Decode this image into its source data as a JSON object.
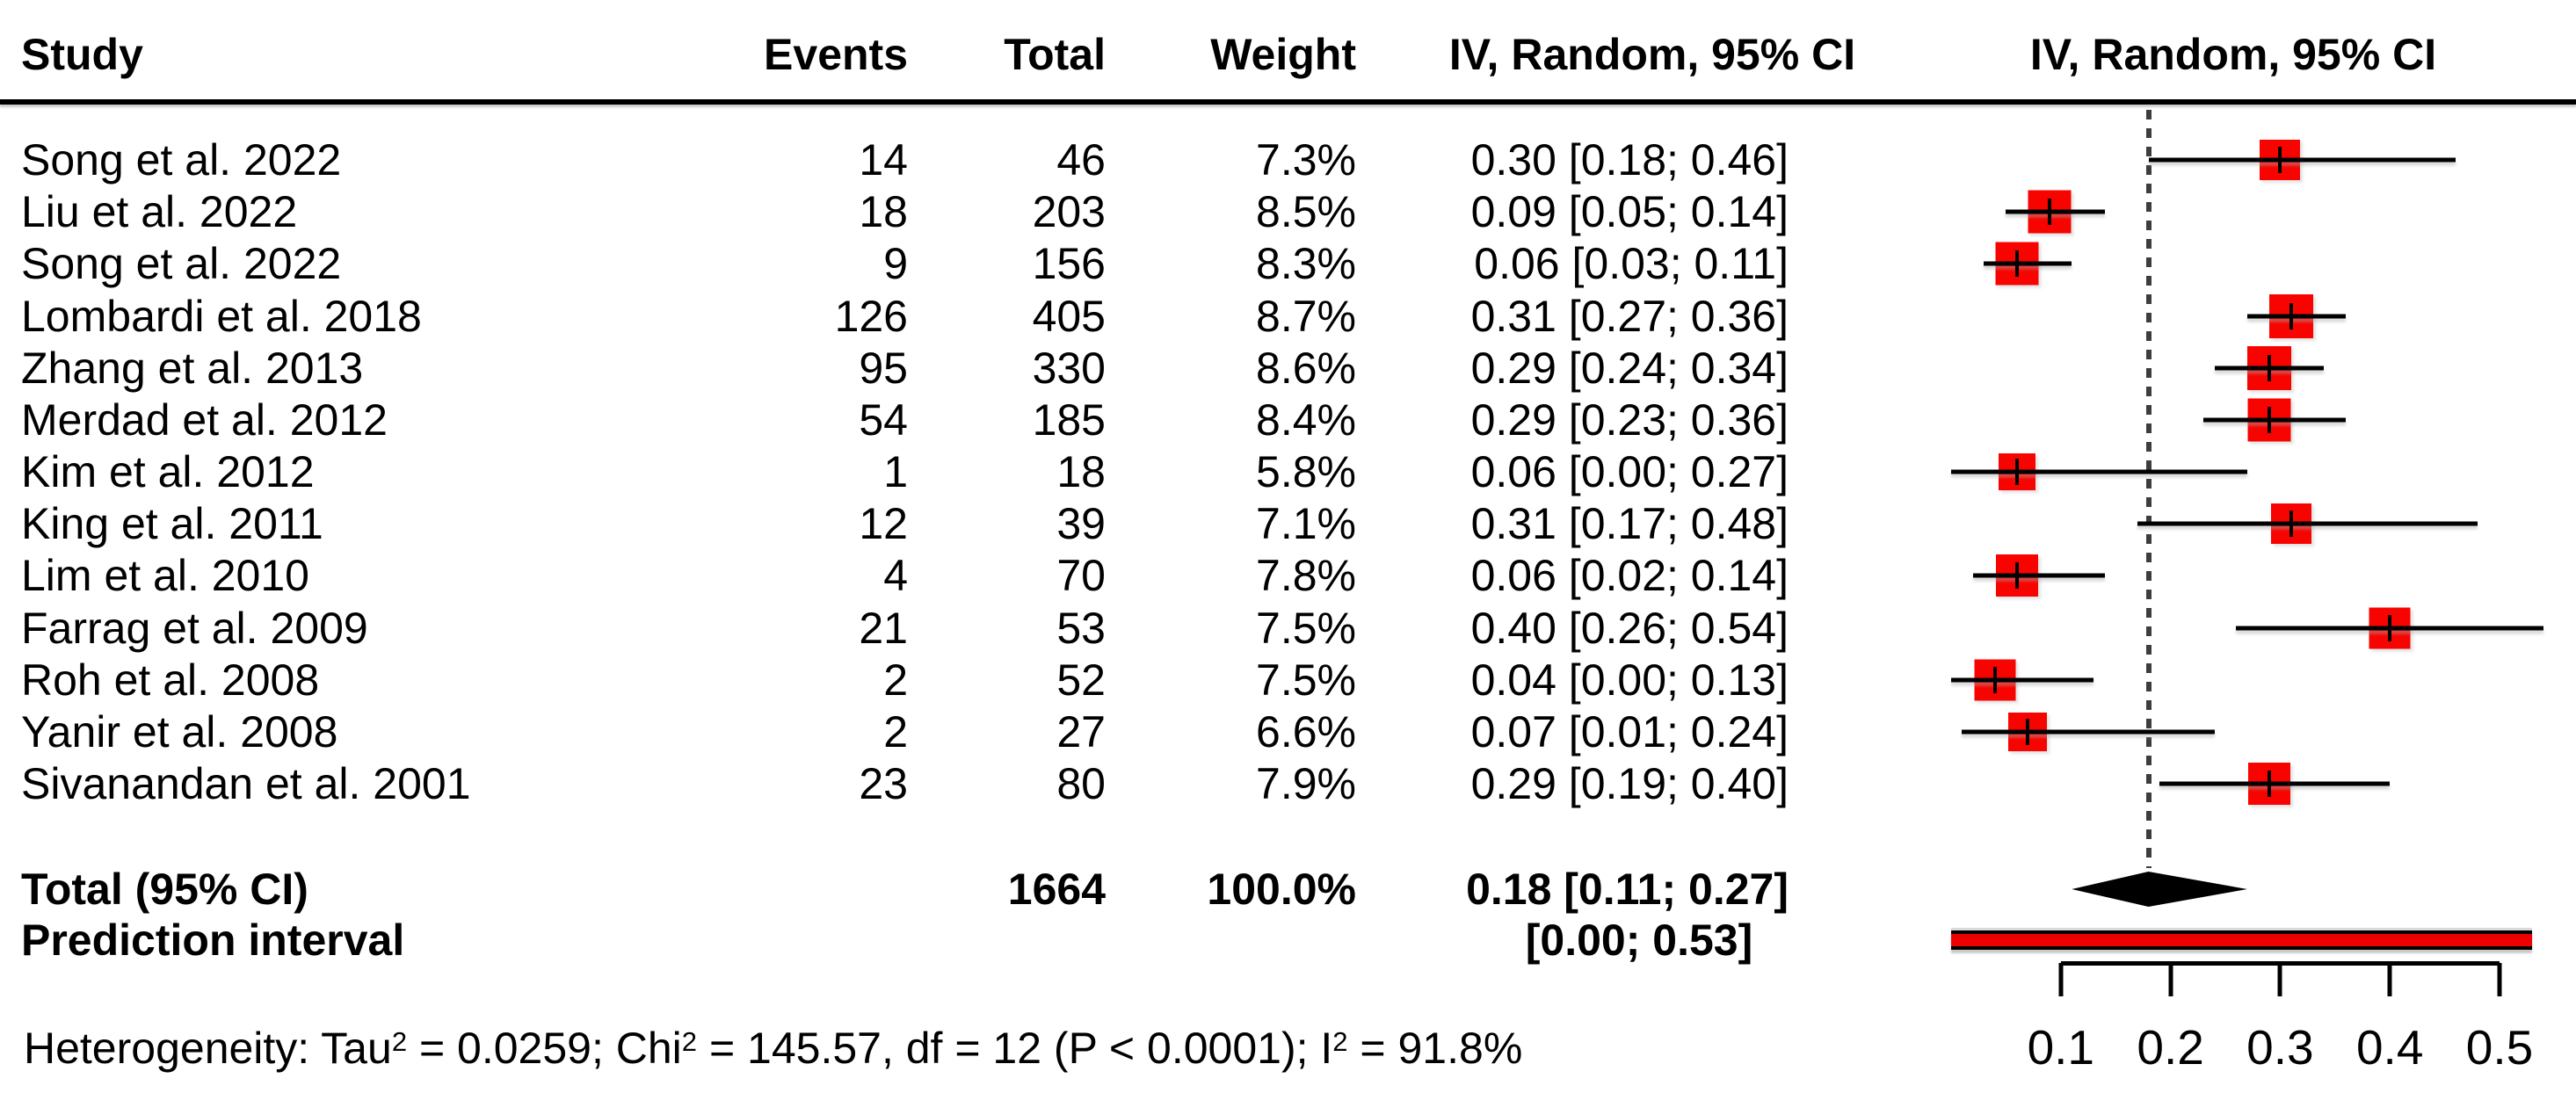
{
  "colors": {
    "square_red": "#f80400",
    "prediction_red": "#ee0000",
    "line_black": "#000000",
    "dotted_gray": "#3d3d3d",
    "background": "#ffffff"
  },
  "header": {
    "study": "Study",
    "events": "Events",
    "total": "Total",
    "weight": "Weight",
    "ci_text_col": "IV, Random, 95% CI",
    "ci_plot_col": "IV, Random, 95% CI"
  },
  "chart_data": {
    "type": "forest",
    "model_label": "IV, Random, 95% CI",
    "xlim": [
      0,
      0.565
    ],
    "x_ticks": [
      0.1,
      0.2,
      0.3,
      0.4,
      0.5
    ],
    "x_tick_labels": [
      "0.1",
      "0.2",
      "0.3",
      "0.4",
      "0.5"
    ],
    "reference_line": 0.18,
    "studies": [
      {
        "name": "Song et al. 2022",
        "events": "14",
        "total": "46",
        "weight": "7.3%",
        "weight_val": 7.3,
        "estimate": 0.3,
        "ci_low": 0.18,
        "ci_high": 0.46,
        "ci_text": "0.30 [0.18; 0.46]"
      },
      {
        "name": "Liu et al. 2022",
        "events": "18",
        "total": "203",
        "weight": "8.5%",
        "weight_val": 8.5,
        "estimate": 0.09,
        "ci_low": 0.05,
        "ci_high": 0.14,
        "ci_text": "0.09 [0.05; 0.14]"
      },
      {
        "name": "Song et al. 2022",
        "events": "9",
        "total": "156",
        "weight": "8.3%",
        "weight_val": 8.3,
        "estimate": 0.06,
        "ci_low": 0.03,
        "ci_high": 0.11,
        "ci_text": "0.06 [0.03; 0.11]"
      },
      {
        "name": "Lombardi et al. 2018",
        "events": "126",
        "total": "405",
        "weight": "8.7%",
        "weight_val": 8.7,
        "estimate": 0.31,
        "ci_low": 0.27,
        "ci_high": 0.36,
        "ci_text": "0.31 [0.27; 0.36]"
      },
      {
        "name": "Zhang et al. 2013",
        "events": "95",
        "total": "330",
        "weight": "8.6%",
        "weight_val": 8.6,
        "estimate": 0.29,
        "ci_low": 0.24,
        "ci_high": 0.34,
        "ci_text": "0.29 [0.24; 0.34]"
      },
      {
        "name": "Merdad et al. 2012",
        "events": "54",
        "total": "185",
        "weight": "8.4%",
        "weight_val": 8.4,
        "estimate": 0.29,
        "ci_low": 0.23,
        "ci_high": 0.36,
        "ci_text": "0.29 [0.23; 0.36]"
      },
      {
        "name": "Kim et al. 2012",
        "events": "1",
        "total": "18",
        "weight": "5.8%",
        "weight_val": 5.8,
        "estimate": 0.06,
        "ci_low": 0.0,
        "ci_high": 0.27,
        "ci_text": "0.06 [0.00; 0.27]"
      },
      {
        "name": "King et al. 2011",
        "events": "12",
        "total": "39",
        "weight": "7.1%",
        "weight_val": 7.1,
        "estimate": 0.31,
        "ci_low": 0.17,
        "ci_high": 0.48,
        "ci_text": "0.31 [0.17; 0.48]"
      },
      {
        "name": "Lim et al. 2010",
        "events": "4",
        "total": "70",
        "weight": "7.8%",
        "weight_val": 7.8,
        "estimate": 0.06,
        "ci_low": 0.02,
        "ci_high": 0.14,
        "ci_text": "0.06 [0.02; 0.14]"
      },
      {
        "name": "Farrag et al. 2009",
        "events": "21",
        "total": "53",
        "weight": "7.5%",
        "weight_val": 7.5,
        "estimate": 0.4,
        "ci_low": 0.26,
        "ci_high": 0.54,
        "ci_text": "0.40 [0.26; 0.54]"
      },
      {
        "name": "Roh et al. 2008",
        "events": "2",
        "total": "52",
        "weight": "7.5%",
        "weight_val": 7.5,
        "estimate": 0.04,
        "ci_low": 0.0,
        "ci_high": 0.13,
        "ci_text": "0.04 [0.00; 0.13]"
      },
      {
        "name": "Yanir et al. 2008",
        "events": "2",
        "total": "27",
        "weight": "6.6%",
        "weight_val": 6.6,
        "estimate": 0.07,
        "ci_low": 0.01,
        "ci_high": 0.24,
        "ci_text": "0.07 [0.01; 0.24]"
      },
      {
        "name": "Sivanandan et al. 2001",
        "events": "23",
        "total": "80",
        "weight": "7.9%",
        "weight_val": 7.9,
        "estimate": 0.29,
        "ci_low": 0.19,
        "ci_high": 0.4,
        "ci_text": "0.29 [0.19; 0.40]"
      }
    ],
    "total": {
      "label": "Total (95% CI)",
      "total": "1664",
      "weight": "100.0%",
      "estimate": 0.18,
      "ci_low": 0.11,
      "ci_high": 0.27,
      "ci_text": "0.18 [0.11; 0.27]"
    },
    "prediction": {
      "label": "Prediction interval",
      "ci_low": 0.0,
      "ci_high": 0.53,
      "ci_text": "[0.00; 0.53]"
    },
    "heterogeneity_segments": [
      {
        "t": "Heterogeneity: Tau"
      },
      {
        "sup": "2"
      },
      {
        "t": " = 0.0259; Chi"
      },
      {
        "sup": "2"
      },
      {
        "t": " = 145.57, df = 12 (P < 0.0001); I"
      },
      {
        "sup": "2"
      },
      {
        "t": " = 91.8%"
      }
    ]
  }
}
